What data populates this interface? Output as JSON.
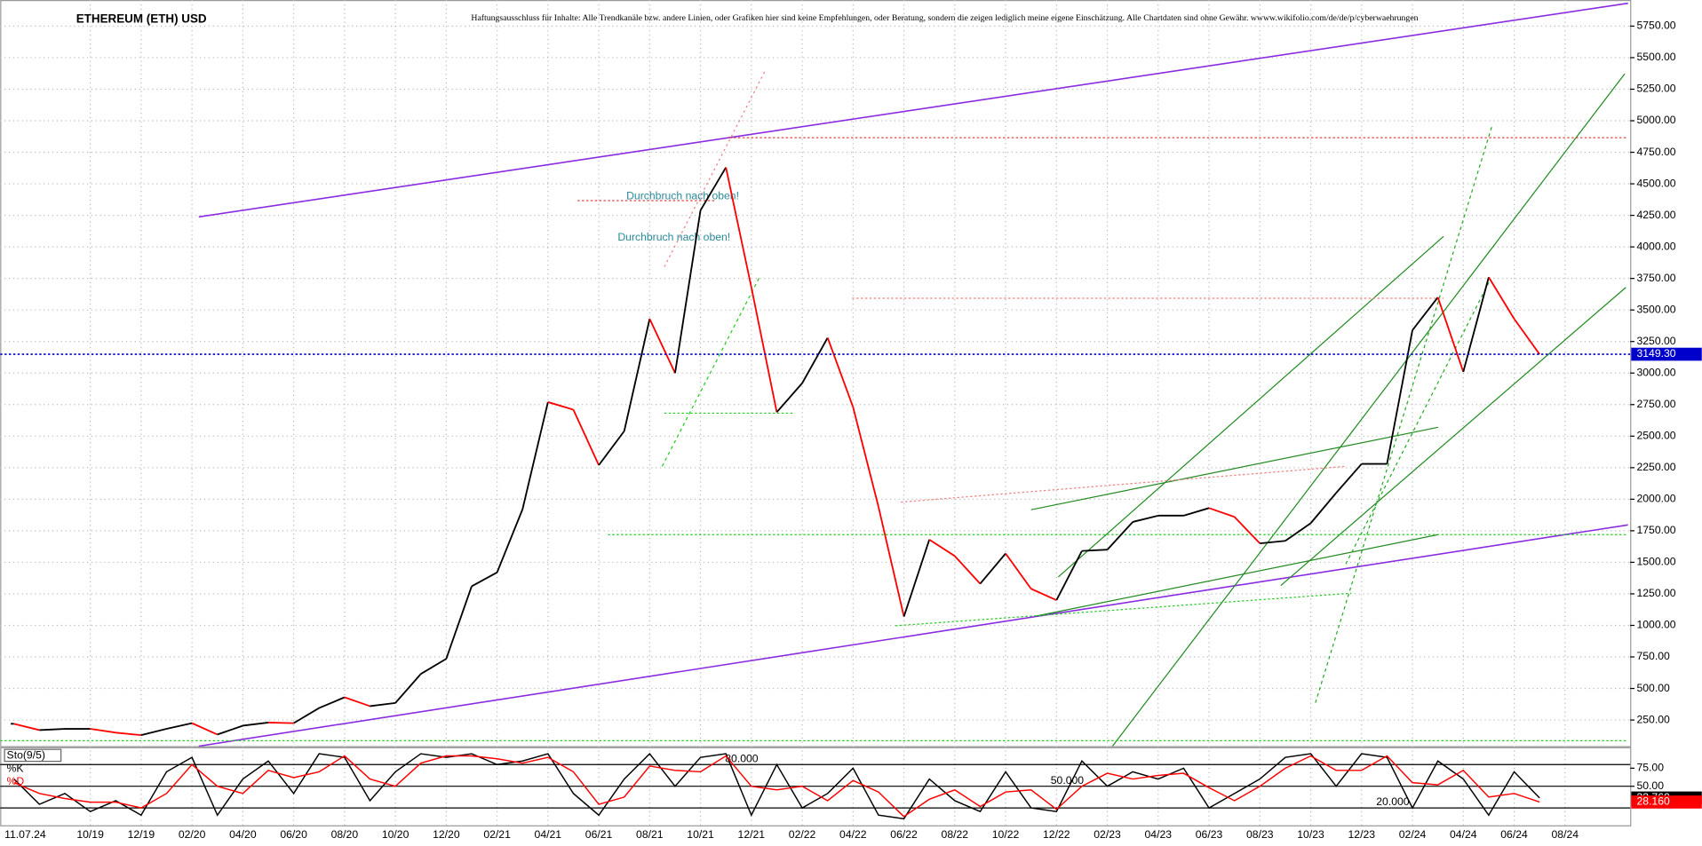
{
  "chart_data": {
    "type": "line",
    "title": "ETHEREUM (ETH) USD",
    "disclaimer": "Haftungsausschluss für Inhalte: Alle Trendkanäle bzw. andere Linien, oder Grafiken hier sind keine Empfehlungen, oder Beratung, sondern die zeigen lediglich meine eigene Einschätzung. Alle Chartdaten sind ohne Gewähr. wwww.wikifolio.com/de/de/p/cyberwaehrungen",
    "date": "11.07.24",
    "annotations": [
      "Durchbruch nach oben!",
      "Durchbruch nach oben!"
    ],
    "categories": [
      null,
      null,
      null,
      "10/19",
      null,
      "12/19",
      null,
      "02/20",
      null,
      "04/20",
      null,
      "06/20",
      null,
      "08/20",
      null,
      "10/20",
      null,
      "12/20",
      null,
      "02/21",
      null,
      "04/21",
      null,
      "06/21",
      null,
      "08/21",
      null,
      "10/21",
      null,
      "12/21",
      null,
      "02/22",
      null,
      "04/22",
      null,
      "06/22",
      null,
      "08/22",
      null,
      "10/22",
      null,
      "12/22",
      null,
      "02/23",
      null,
      "04/23",
      null,
      "06/23",
      null,
      "08/23",
      null,
      "10/23",
      null,
      "12/23",
      null,
      "02/24",
      null,
      "04/24",
      null,
      "06/24",
      null,
      "08/24"
    ],
    "values": [
      220,
      170,
      180,
      180,
      150,
      130,
      180,
      225,
      135,
      205,
      230,
      225,
      345,
      430,
      360,
      385,
      615,
      735,
      1310,
      1420,
      1920,
      2770,
      2710,
      2270,
      2540,
      3430,
      3000,
      4290,
      4630,
      3680,
      2690,
      2920,
      3280,
      2730,
      1940,
      1070,
      1680,
      1550,
      1330,
      1570,
      1290,
      1200,
      1590,
      1600,
      1820,
      1870,
      1870,
      1930,
      1860,
      1650,
      1670,
      1810,
      2050,
      2280,
      2280,
      3340,
      3600,
      3010,
      3760,
      3430,
      3149.3,
      null
    ],
    "up_color": "#000000",
    "down_color": "#ff0000",
    "last_price": {
      "value": 3149.3,
      "label": "3149.30"
    },
    "last_price_color": "#0000cc",
    "ylim": [
      43,
      5957
    ],
    "yticks": [
      {
        "value": 250,
        "label": "250.00"
      },
      {
        "value": 500,
        "label": "500.00"
      },
      {
        "value": 750,
        "label": "750.00"
      },
      {
        "value": 1000,
        "label": "1000.00"
      },
      {
        "value": 1250,
        "label": "1250.00"
      },
      {
        "value": 1500,
        "label": "1500.00"
      },
      {
        "value": 1750,
        "label": "1750.00"
      },
      {
        "value": 2000,
        "label": "2000.00"
      },
      {
        "value": 2250,
        "label": "2250.00"
      },
      {
        "value": 2500,
        "label": "2500.00"
      },
      {
        "value": 2750,
        "label": "2750.00"
      },
      {
        "value": 3000,
        "label": "3000.00"
      },
      {
        "value": 3250,
        "label": "3250.00"
      },
      {
        "value": 3500,
        "label": "3500.00"
      },
      {
        "value": 3750,
        "label": "3750.00"
      },
      {
        "value": 4000,
        "label": "4000.00"
      },
      {
        "value": 4250,
        "label": "4250.00"
      },
      {
        "value": 4500,
        "label": "4500.00"
      },
      {
        "value": 4750,
        "label": "4750.00"
      },
      {
        "value": 5000,
        "label": "5000.00"
      },
      {
        "value": 5250,
        "label": "5250.00"
      },
      {
        "value": 5500,
        "label": "5500.00"
      },
      {
        "value": 5750,
        "label": "5750.00"
      }
    ],
    "grid": true,
    "indicator": {
      "type": "line",
      "title": "Sto(9/5)",
      "ylim": [
        0,
        100
      ],
      "yticks": [
        {
          "value": 75,
          "label": "75.00"
        },
        {
          "value": 50,
          "label": "50.00"
        }
      ],
      "levels": [
        {
          "value": 80,
          "label": "80.000"
        },
        {
          "value": 50,
          "label": "50.000"
        },
        {
          "value": 20,
          "label": "20.000"
        }
      ],
      "series": [
        {
          "name": "%K",
          "color": "#000000",
          "last": {
            "value": 33.76,
            "label": "33.760"
          },
          "values": [
            60,
            25,
            40,
            15,
            30,
            10,
            70,
            90,
            10,
            60,
            85,
            40,
            95,
            90,
            30,
            70,
            95,
            90,
            95,
            80,
            85,
            95,
            40,
            10,
            60,
            95,
            50,
            90,
            95,
            10,
            80,
            20,
            40,
            75,
            10,
            5,
            60,
            30,
            15,
            70,
            20,
            15,
            85,
            50,
            70,
            60,
            75,
            20,
            40,
            60,
            90,
            95,
            50,
            95,
            90,
            20,
            85,
            60,
            10,
            70,
            33.76,
            null
          ]
        },
        {
          "name": "%D",
          "color": "#ff0000",
          "last": {
            "value": 28.16,
            "label": "28.160"
          },
          "values": [
            55,
            40,
            33,
            28,
            28,
            20,
            40,
            80,
            50,
            40,
            72,
            62,
            70,
            92,
            60,
            50,
            82,
            92,
            92,
            88,
            82,
            90,
            70,
            25,
            35,
            78,
            72,
            70,
            92,
            50,
            45,
            50,
            30,
            58,
            42,
            8,
            32,
            45,
            22,
            42,
            45,
            18,
            50,
            68,
            60,
            65,
            68,
            48,
            30,
            50,
            75,
            92,
            72,
            72,
            92,
            55,
            52,
            72,
            35,
            40,
            28.16,
            null
          ]
        }
      ]
    }
  }
}
